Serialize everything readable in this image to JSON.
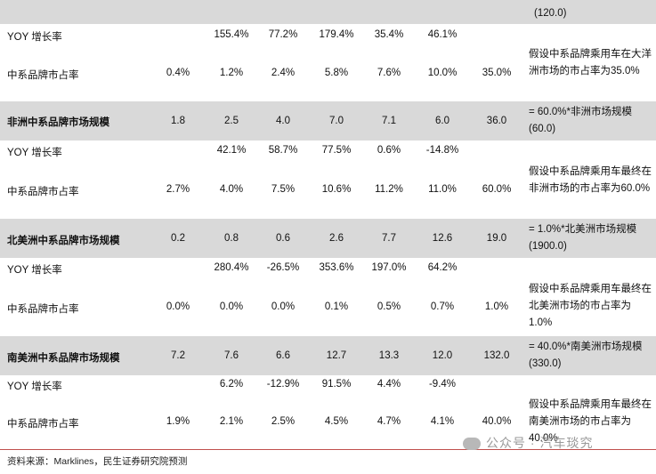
{
  "columns_x": [
    200,
    260,
    318,
    378,
    437,
    497,
    558
  ],
  "rows": [
    {
      "id": "top-shaded",
      "shaded": true,
      "label": "",
      "bold": false,
      "values": [
        "",
        "",
        "",
        "",
        "",
        "",
        ""
      ]
    },
    {
      "id": "ocean-yoy",
      "shaded": false,
      "label": "YOY 增长率",
      "bold": false,
      "values": [
        "",
        "155.4%",
        "77.2%",
        "179.4%",
        "35.4%",
        "46.1%",
        ""
      ]
    },
    {
      "id": "ocean-share",
      "shaded": false,
      "label": "中系品牌市占率",
      "bold": false,
      "values": [
        "0.4%",
        "1.2%",
        "2.4%",
        "5.8%",
        "7.6%",
        "10.0%",
        "35.0%"
      ]
    },
    {
      "id": "africa-scale",
      "shaded": true,
      "label": "非洲中系品牌市场规模",
      "bold": true,
      "values": [
        "1.8",
        "2.5",
        "4.0",
        "7.0",
        "7.1",
        "6.0",
        "36.0"
      ]
    },
    {
      "id": "africa-yoy",
      "shaded": false,
      "label": "YOY 增长率",
      "bold": false,
      "values": [
        "",
        "42.1%",
        "58.7%",
        "77.5%",
        "0.6%",
        "-14.8%",
        ""
      ]
    },
    {
      "id": "africa-share",
      "shaded": false,
      "label": "中系品牌市占率",
      "bold": false,
      "values": [
        "2.7%",
        "4.0%",
        "7.5%",
        "10.6%",
        "11.2%",
        "11.0%",
        "60.0%"
      ]
    },
    {
      "id": "na-scale",
      "shaded": true,
      "label": "北美洲中系品牌市场规模",
      "bold": true,
      "values": [
        "0.2",
        "0.8",
        "0.6",
        "2.6",
        "7.7",
        "12.6",
        "19.0"
      ]
    },
    {
      "id": "na-yoy",
      "shaded": false,
      "label": "YOY 增长率",
      "bold": false,
      "values": [
        "",
        "280.4%",
        "-26.5%",
        "353.6%",
        "197.0%",
        "64.2%",
        ""
      ]
    },
    {
      "id": "na-share",
      "shaded": false,
      "label": "中系品牌市占率",
      "bold": false,
      "values": [
        "0.0%",
        "0.0%",
        "0.0%",
        "0.1%",
        "0.5%",
        "0.7%",
        "1.0%"
      ]
    },
    {
      "id": "sa-scale",
      "shaded": true,
      "label": "南美洲中系品牌市场规模",
      "bold": true,
      "values": [
        "7.2",
        "7.6",
        "6.6",
        "12.7",
        "13.3",
        "12.0",
        "132.0"
      ]
    },
    {
      "id": "sa-yoy",
      "shaded": false,
      "label": "YOY 增长率",
      "bold": false,
      "values": [
        "",
        "6.2%",
        "-12.9%",
        "91.5%",
        "4.4%",
        "-9.4%",
        ""
      ]
    },
    {
      "id": "sa-share",
      "shaded": false,
      "label": "中系品牌市占率",
      "bold": false,
      "values": [
        "1.9%",
        "2.1%",
        "2.5%",
        "4.5%",
        "4.7%",
        "4.1%",
        "40.0%"
      ]
    }
  ],
  "notes": {
    "top": "(120.0)",
    "ocean_share": "假设中系品牌乘用车在大洋洲市场的市占率为35.0%",
    "africa_scale": "= 60.0%*非洲市场规模 (60.0)",
    "africa_share": "假设中系品牌乘用车最终在非洲市场的市占率为60.0%",
    "na_scale": "= 1.0%*北美洲市场规模 (1900.0)",
    "na_share": "假设中系品牌乘用车最终在北美洲市场的市占率为1.0%",
    "sa_scale": "= 40.0%*南美洲市场规模 (330.0)",
    "sa_share": "假设中系品牌乘用车最终在南美洲市场的市占率为40.0%"
  },
  "source": "资料来源：Marklines，民生证券研究院预测",
  "watermark": "公众号 · 汽车琰究"
}
